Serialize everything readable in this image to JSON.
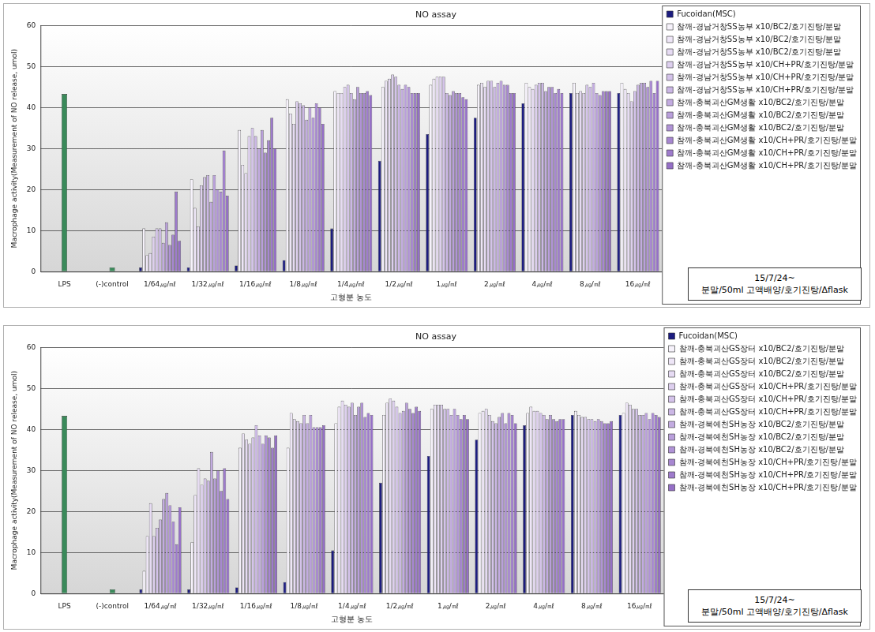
{
  "chart_data": [
    {
      "type": "bar",
      "title": "NO assay",
      "x_label": "고형분 농도",
      "y_label": "Macrophage activity(Measurement of NO release, umol)",
      "categories": [
        "LPS",
        "(-)control",
        "1/64㎍/㎖",
        "1/32㎍/㎖",
        "1/16㎍/㎖",
        "1/8㎍/㎖",
        "1/4㎍/㎖",
        "1/2㎍/㎖",
        "1㎍/㎖",
        "2㎍/㎖",
        "4㎍/㎖",
        "8㎍/㎖",
        "16㎍/㎖"
      ],
      "ylim": [
        0,
        60
      ],
      "yticks": [
        0,
        10,
        20,
        30,
        40,
        50,
        60
      ],
      "grid": true,
      "legend": "right",
      "annotations": [
        "15/7/24~",
        "분말/50ml 고액배양/호기진탕/Δflask"
      ],
      "series": [
        {
          "name": null,
          "color": "#3a8a5a",
          "values": [
            43.3,
            1,
            null,
            null,
            null,
            null,
            null,
            null,
            null,
            null,
            null,
            null,
            null
          ]
        },
        {
          "name": "Fucoidan(MSC)",
          "color": "#1c1c80",
          "values": [
            null,
            null,
            1,
            1,
            1.5,
            2.8,
            10.5,
            27,
            33.5,
            37.5,
            41,
            43.5,
            43.5
          ]
        },
        {
          "name": "참깨-경남거창SS농부 x10/BC2/호기진탕/분말",
          "color": "#f6f2fb",
          "values": [
            null,
            null,
            10.5,
            22.5,
            34.5,
            42,
            44,
            45,
            45.5,
            45.5,
            46,
            46,
            46
          ]
        },
        {
          "name": "참깨-경남거창SS농부 x10/BC2/호기진탕/분말",
          "color": "#eee6f7",
          "values": [
            null,
            null,
            4,
            15.5,
            26,
            38.5,
            43.5,
            46.5,
            47,
            46,
            45,
            43.5,
            44.5
          ]
        },
        {
          "name": "참깨-경남거창SS농부 x10/BC2/호기진탕/분말",
          "color": "#e6dbf3",
          "values": [
            null,
            null,
            4.5,
            11,
            24,
            36,
            43.5,
            47,
            47.5,
            45,
            44.5,
            44,
            43.5
          ]
        },
        {
          "name": "참깨-경남거창SS농부 x10/CH+PR/호기진탕/분말",
          "color": "#ddcfee",
          "values": [
            null,
            null,
            8.5,
            21,
            33,
            41.5,
            45,
            48,
            47.5,
            46.5,
            45.5,
            43.5,
            41.5
          ]
        },
        {
          "name": "참깨-경남거창SS농부 x10/CH+PR/호기진탕/분말",
          "color": "#d4c3ea",
          "values": [
            null,
            null,
            10.5,
            23,
            35,
            41,
            45.5,
            47.5,
            47.5,
            46.5,
            46,
            45.5,
            44
          ]
        },
        {
          "name": "참깨-경남거창SS농부 x10/CH+PR/호기진탕/분말",
          "color": "#cbb7e5",
          "values": [
            null,
            null,
            10.5,
            23.5,
            33,
            40.5,
            43.5,
            45.5,
            43.5,
            45,
            46,
            45,
            45.5
          ]
        },
        {
          "name": "참깨-충북괴산GM생활 x10/BC2/호기진탕/분말",
          "color": "#c2abe0",
          "values": [
            null,
            null,
            7,
            17,
            30,
            37,
            42,
            44.5,
            43,
            46,
            44,
            46,
            46
          ]
        },
        {
          "name": "참깨-충북괴산GM생활 x10/BC2/호기진탕/분말",
          "color": "#b99fdb",
          "values": [
            null,
            null,
            12,
            23.5,
            34.5,
            40,
            45,
            45.5,
            44,
            46.5,
            45,
            43.5,
            46
          ]
        },
        {
          "name": "참깨-충북괴산GM생활 x10/BC2/호기진탕/분말",
          "color": "#b093d6",
          "values": [
            null,
            null,
            6.5,
            20,
            29,
            37.5,
            43.5,
            45,
            43.5,
            45.5,
            45,
            43,
            45
          ]
        },
        {
          "name": "참깨-충북괴산GM생활 x10/CH+PR/호기진탕/분말",
          "color": "#a787d1",
          "values": [
            null,
            null,
            9,
            19.5,
            32,
            41,
            43.5,
            43.5,
            43.5,
            45.5,
            43.5,
            44,
            46.5
          ]
        },
        {
          "name": "참깨-충북괴산GM생활 x10/CH+PR/호기진탕/분말",
          "color": "#9e7bcc",
          "values": [
            null,
            null,
            19.5,
            29.5,
            37.5,
            40,
            44,
            43.5,
            42.5,
            43.5,
            44.5,
            44,
            43.5
          ]
        },
        {
          "name": "참깨-충북괴산GM생활 x10/CH+PR/호기진탕/분말",
          "color": "#956fc7",
          "values": [
            null,
            null,
            7.5,
            18.5,
            30,
            36,
            43,
            43.5,
            42,
            43.5,
            43.5,
            44,
            46.5
          ]
        }
      ]
    },
    {
      "type": "bar",
      "title": "NO assay",
      "x_label": "고형분 농도",
      "y_label": "Macrophage activity(Measurement of NO release, umol)",
      "categories": [
        "LPS",
        "(-)control",
        "1/64㎍/㎖",
        "1/32㎍/㎖",
        "1/16㎍/㎖",
        "1/8㎍/㎖",
        "1/4㎍/㎖",
        "1/2㎍/㎖",
        "1㎍/㎖",
        "2㎍/㎖",
        "4㎍/㎖",
        "8㎍/㎖",
        "16㎍/㎖"
      ],
      "ylim": [
        0,
        60
      ],
      "yticks": [
        0,
        10,
        20,
        30,
        40,
        50,
        60
      ],
      "grid": true,
      "legend": "right",
      "annotations": [
        "15/7/24~",
        "분말/50ml 고액배양/호기진탕/Δflask"
      ],
      "series": [
        {
          "name": null,
          "color": "#3a8a5a",
          "values": [
            43.3,
            1,
            null,
            null,
            null,
            null,
            null,
            null,
            null,
            null,
            null,
            null,
            null
          ]
        },
        {
          "name": "Fucoidan(MSC)",
          "color": "#1c1c80",
          "values": [
            null,
            null,
            1,
            1,
            1.5,
            2.8,
            10.5,
            27,
            33.5,
            37.5,
            41,
            43.5,
            43.5
          ]
        },
        {
          "name": "참깨-충북괴산GS장터 x10/BC2/호기진탕/분말",
          "color": "#f6f2fb",
          "values": [
            null,
            null,
            5.5,
            12.5,
            35.5,
            35.5,
            41.5,
            43.5,
            45,
            44,
            44,
            44.5,
            44
          ]
        },
        {
          "name": "참깨-충북괴산GS장터 x10/BC2/호기진탕/분말",
          "color": "#eee6f7",
          "values": [
            null,
            null,
            14,
            24,
            39,
            44,
            45.5,
            46.5,
            46,
            44.5,
            45.5,
            43.5,
            46.5
          ]
        },
        {
          "name": "참깨-충북괴산GS장터 x10/BC2/호기진탕/분말",
          "color": "#e6dbf3",
          "values": [
            null,
            null,
            22,
            30.5,
            37.5,
            42.5,
            47,
            47.5,
            46,
            45,
            44.5,
            43,
            46
          ]
        },
        {
          "name": "참깨-충북괴산GS장터 x10/CH+PR/호기진탕/분말",
          "color": "#ddcfee",
          "values": [
            null,
            null,
            14,
            26.5,
            36.5,
            42,
            46,
            47,
            46,
            43.5,
            44.5,
            43,
            45
          ]
        },
        {
          "name": "참깨-충북괴산GS장터 x10/CH+PR/호기진탕/분말",
          "color": "#d4c3ea",
          "values": [
            null,
            null,
            16,
            28,
            38,
            41.5,
            45.5,
            45.5,
            45,
            42,
            44,
            42.5,
            45
          ]
        },
        {
          "name": "참깨-충북괴산GS장터 x10/CH+PR/호기진탕/분말",
          "color": "#cbb7e5",
          "values": [
            null,
            null,
            18,
            27.5,
            41,
            43.5,
            46.5,
            44,
            45,
            41.5,
            43.5,
            42.5,
            43.5
          ]
        },
        {
          "name": "참깨-경북예천SH농장 x10/BC2/호기진탕/분말",
          "color": "#c2abe0",
          "values": [
            null,
            null,
            23,
            34.5,
            38.5,
            41.5,
            43.5,
            44.5,
            43.5,
            43,
            42.5,
            42,
            43.5
          ]
        },
        {
          "name": "참깨-경북예천SH농장 x10/BC2/호기진탕/분말",
          "color": "#b99fdb",
          "values": [
            null,
            null,
            24.5,
            28,
            36.5,
            43.5,
            45.5,
            46.5,
            45,
            44,
            43.5,
            42.5,
            44
          ]
        },
        {
          "name": "참깨-경북예천SH농장 x10/BC2/호기진탕/분말",
          "color": "#b093d6",
          "values": [
            null,
            null,
            21.5,
            30,
            38.5,
            40.5,
            46.5,
            45,
            43.5,
            41.5,
            42.5,
            42,
            42.5
          ]
        },
        {
          "name": "참깨-경북예천SH농장 x10/CH+PR/호기진탕/분말",
          "color": "#a787d1",
          "values": [
            null,
            null,
            17.5,
            25,
            38,
            40.5,
            43,
            44,
            42.5,
            44,
            42,
            41.5,
            44
          ]
        },
        {
          "name": "참깨-경북예천SH농장 x10/CH+PR/호기진탕/분말",
          "color": "#9e7bcc",
          "values": [
            null,
            null,
            12,
            30.5,
            35.5,
            40.5,
            44,
            45.5,
            43.5,
            43.5,
            42.5,
            41.5,
            43.5
          ]
        },
        {
          "name": "참깨-경북예천SH농장 x10/CH+PR/호기진탕/분말",
          "color": "#956fc7",
          "values": [
            null,
            null,
            21,
            23,
            38.5,
            41,
            43.5,
            44.5,
            42.5,
            41.5,
            42.5,
            42,
            43
          ]
        }
      ]
    }
  ]
}
